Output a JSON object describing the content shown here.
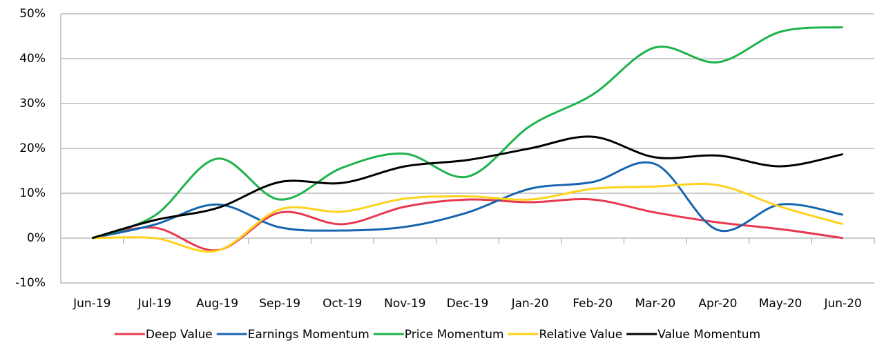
{
  "chart_data": {
    "type": "line",
    "categories": [
      "Jun-19",
      "Jul-19",
      "Aug-19",
      "Sep-19",
      "Oct-19",
      "Nov-19",
      "Dec-19",
      "Jan-20",
      "Feb-20",
      "Mar-20",
      "Apr-20",
      "May-20",
      "Jun-20"
    ],
    "series": [
      {
        "name": "Deep Value",
        "color": "#e8384f",
        "values": [
          0,
          2.3,
          -2.7,
          5.7,
          3.1,
          7,
          8.6,
          8.0,
          8.6,
          5.7,
          3.5,
          2.0,
          0
        ]
      },
      {
        "name": "Earnings Momentum",
        "color": "#1565b0",
        "values": [
          0,
          3,
          7.5,
          2.4,
          1.7,
          2.5,
          5.7,
          11,
          12.5,
          16.5,
          1.8,
          7.5,
          5.2
        ]
      },
      {
        "name": "Price Momentum",
        "color": "#1db34a",
        "values": [
          0,
          5,
          17.7,
          8.6,
          15.7,
          18.8,
          13.7,
          25,
          32,
          42.5,
          39.2,
          46,
          47
        ]
      },
      {
        "name": "Relative Value",
        "color": "#ffd21c",
        "values": [
          0,
          0,
          -2.8,
          6.4,
          5.9,
          8.8,
          9.3,
          8.6,
          11,
          11.5,
          11.8,
          7,
          3.1
        ]
      },
      {
        "name": "Value Momentum",
        "color": "#000000",
        "values": [
          0,
          4,
          6.7,
          12.5,
          12.3,
          16,
          17.4,
          20,
          22.6,
          18,
          18.4,
          16,
          18.7
        ]
      }
    ],
    "ylim": [
      -10,
      50
    ],
    "yticks": [
      {
        "value": -10,
        "label": "-10%"
      },
      {
        "value": 0,
        "label": "0%"
      },
      {
        "value": 10,
        "label": "10%"
      },
      {
        "value": 20,
        "label": "20%"
      },
      {
        "value": 30,
        "label": "30%"
      },
      {
        "value": 40,
        "label": "40%"
      },
      {
        "value": 50,
        "label": "50%"
      }
    ],
    "grid": true,
    "legend": "bottom"
  }
}
